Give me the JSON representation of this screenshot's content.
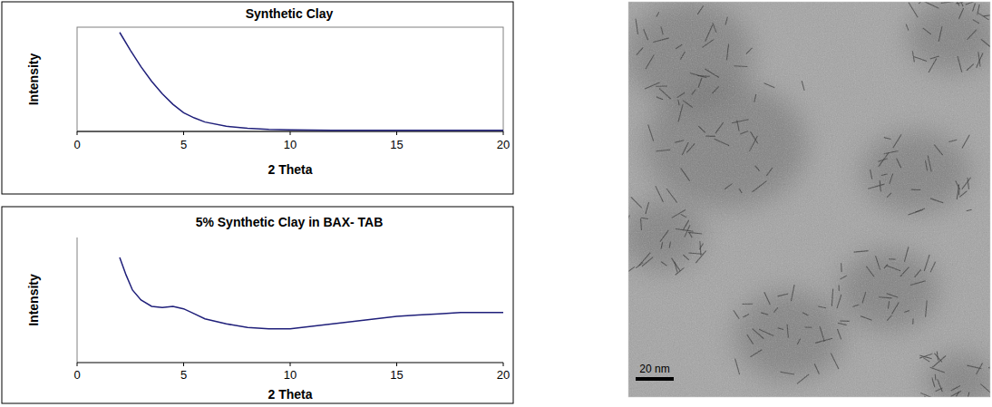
{
  "chart_data": [
    {
      "type": "line",
      "title": "Synthetic Clay",
      "x_label": "2 Theta",
      "y_label": "Intensity",
      "x": [
        2,
        2.5,
        3,
        3.5,
        4,
        4.5,
        5,
        5.5,
        6,
        7,
        8,
        9,
        10,
        12,
        15,
        20
      ],
      "values": [
        95,
        78,
        62,
        48,
        36,
        26,
        18,
        13,
        9,
        5,
        3,
        2,
        1.5,
        1,
        1,
        1
      ],
      "color": "#1f1f7a",
      "xlim": [
        0,
        20
      ],
      "xticks": [
        0,
        5,
        10,
        15,
        20
      ],
      "ylim": [
        0,
        100
      ],
      "grid": false,
      "tick_labels": "x"
    },
    {
      "type": "line",
      "title": "5% Synthetic Clay in BAX- TAB",
      "x_label": "2 Theta",
      "y_label": "Intensity",
      "x": [
        2,
        2.3,
        2.6,
        3,
        3.5,
        4,
        4.5,
        5,
        5.5,
        6,
        7,
        8,
        9,
        10,
        11,
        12,
        13,
        14,
        15,
        16,
        17,
        18,
        19,
        20
      ],
      "values": [
        84,
        70,
        58,
        50,
        45,
        44,
        45,
        43,
        39,
        35,
        31,
        28,
        27,
        27,
        29,
        31,
        33,
        35,
        37,
        38,
        39,
        40,
        40,
        40
      ],
      "color": "#1f1f7a",
      "xlim": [
        0,
        20
      ],
      "xticks": [
        0,
        5,
        10,
        15,
        20
      ],
      "ylim": [
        0,
        100
      ],
      "grid": false,
      "tick_labels": "x"
    }
  ],
  "image": {
    "scale_bar_label": "20 nm"
  }
}
